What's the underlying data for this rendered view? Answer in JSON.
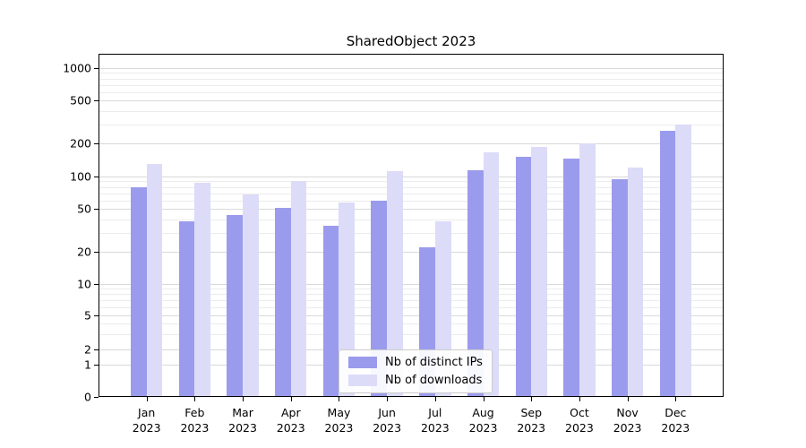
{
  "chart_data": {
    "type": "bar",
    "title": "SharedObject 2023",
    "categories": [
      "Jan 2023",
      "Feb 2023",
      "Mar 2023",
      "Apr 2023",
      "May 2023",
      "Jun 2023",
      "Jul 2023",
      "Aug 2023",
      "Sep 2023",
      "Oct 2023",
      "Nov 2023",
      "Dec 2023"
    ],
    "series": [
      {
        "name": "Nb of distinct IPs",
        "color": "#9b9bee",
        "values": [
          80,
          38,
          44,
          51,
          35,
          60,
          22,
          115,
          150,
          145,
          95,
          260
        ]
      },
      {
        "name": "Nb of downloads",
        "color": "#dcdcf8",
        "values": [
          130,
          88,
          68,
          90,
          57,
          112,
          38,
          165,
          185,
          200,
          120,
          300
        ]
      }
    ],
    "y_ticks": [
      0,
      1,
      2,
      5,
      10,
      20,
      50,
      100,
      200,
      500,
      1000
    ],
    "y_minor_gridlines": [
      3,
      4,
      6,
      7,
      8,
      9,
      30,
      40,
      60,
      70,
      80,
      90,
      300,
      400,
      600,
      700,
      800,
      900
    ],
    "y_scale": "symlog",
    "ylim": [
      0,
      1350
    ],
    "grid": "horizontal",
    "legend_position": "lower center",
    "colors": {
      "major_grid": "#d9d9d9",
      "minor_grid": "#ececec",
      "axis": "#000000",
      "background": "#ffffff"
    }
  }
}
